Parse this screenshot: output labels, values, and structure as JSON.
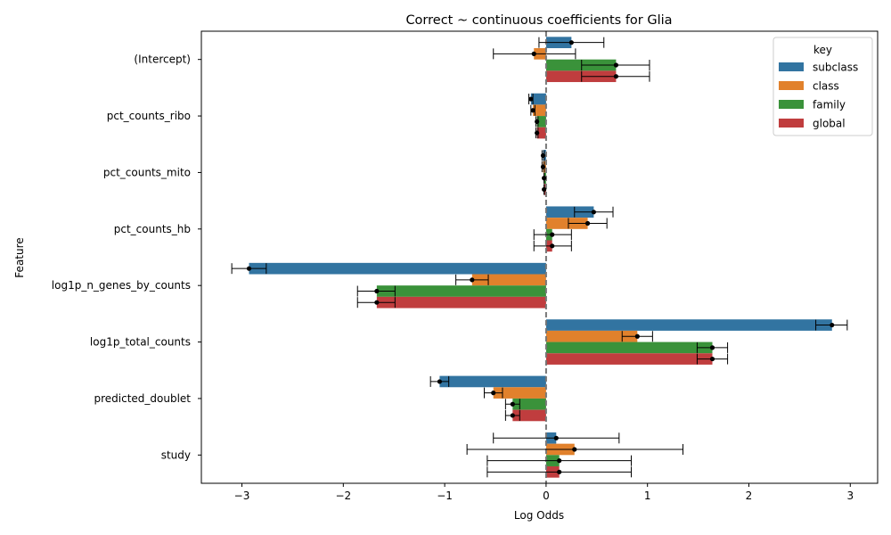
{
  "chart_data": {
    "type": "bar",
    "orientation": "horizontal",
    "title": "Correct ~ continuous coefficients for Glia",
    "xlabel": "Log Odds",
    "ylabel": "Feature",
    "xlim": [
      -3.4,
      3.27
    ],
    "xticks": [
      -3,
      -2,
      -1,
      0,
      1,
      2,
      3
    ],
    "xtick_labels": [
      "−3",
      "−2",
      "−1",
      "0",
      "1",
      "2",
      "3"
    ],
    "reference_line": 0,
    "categories": [
      "(Intercept)",
      "pct_counts_ribo",
      "pct_counts_mito",
      "pct_counts_hb",
      "log1p_n_genes_by_counts",
      "log1p_total_counts",
      "predicted_doublet",
      "study"
    ],
    "legend": {
      "title": "key",
      "position": "top-right"
    },
    "series": [
      {
        "name": "subclass",
        "color": "#3274a1",
        "values": [
          0.25,
          -0.15,
          -0.03,
          0.47,
          -2.93,
          2.82,
          -1.05,
          0.1
        ],
        "err_low": [
          -0.07,
          -0.17,
          -0.04,
          0.28,
          -3.1,
          2.66,
          -1.14,
          -0.52
        ],
        "err_high": [
          0.57,
          -0.13,
          -0.02,
          0.66,
          -2.76,
          2.97,
          -0.96,
          0.72
        ]
      },
      {
        "name": "class",
        "color": "#e1812c",
        "values": [
          -0.12,
          -0.13,
          -0.03,
          0.41,
          -0.73,
          0.9,
          -0.52,
          0.28
        ],
        "err_low": [
          -0.52,
          -0.15,
          -0.04,
          0.22,
          -0.89,
          0.75,
          -0.61,
          -0.78
        ],
        "err_high": [
          0.29,
          -0.11,
          -0.02,
          0.6,
          -0.57,
          1.05,
          -0.43,
          1.35
        ]
      },
      {
        "name": "family",
        "color": "#3a923a",
        "values": [
          0.69,
          -0.09,
          -0.02,
          0.06,
          -1.67,
          1.64,
          -0.33,
          0.13
        ],
        "err_low": [
          0.35,
          -0.1,
          -0.02,
          -0.12,
          -1.86,
          1.49,
          -0.4,
          -0.58
        ],
        "err_high": [
          1.02,
          -0.08,
          -0.02,
          0.25,
          -1.49,
          1.79,
          -0.26,
          0.84
        ]
      },
      {
        "name": "global",
        "color": "#c03d3e",
        "values": [
          0.69,
          -0.09,
          -0.02,
          0.06,
          -1.67,
          1.64,
          -0.33,
          0.13
        ],
        "err_low": [
          0.35,
          -0.1,
          -0.02,
          -0.12,
          -1.86,
          1.49,
          -0.4,
          -0.58
        ],
        "err_high": [
          1.02,
          -0.08,
          -0.02,
          0.25,
          -1.49,
          1.79,
          -0.26,
          0.84
        ]
      }
    ]
  }
}
